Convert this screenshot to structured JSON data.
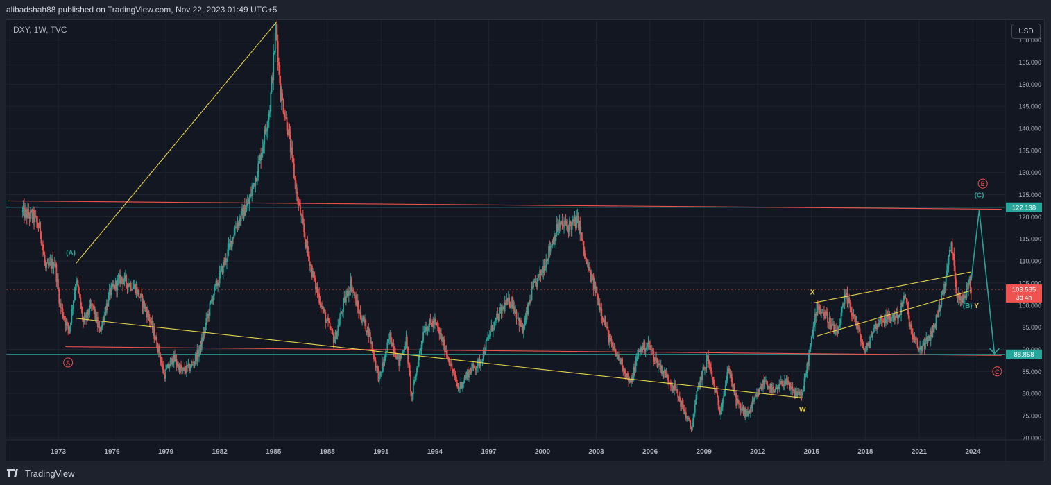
{
  "header": {
    "publisher": "alibadshah88 published on TradingView.com, Nov 22, 2023 01:49 UTC+5"
  },
  "footer": {
    "watermark": "TradingView"
  },
  "currency_button": "USD",
  "colors": {
    "background": "#131722",
    "up": "#26a69a",
    "down": "#ef5350",
    "yellow": "#e8d44d",
    "grid": "#1f2330",
    "text": "#b2b5be"
  },
  "chart_data": {
    "type": "candlestick",
    "symbol_label": "DXY, 1W, TVC",
    "x_range": [
      1970.1,
      2025.8
    ],
    "y_range": [
      69.5,
      164.5
    ],
    "y_ticks": [
      70,
      75,
      80,
      85,
      90,
      95,
      100,
      105,
      110,
      115,
      120,
      125,
      130,
      135,
      140,
      145,
      150,
      155,
      160
    ],
    "y_tick_labels": [
      "70.000",
      "75.000",
      "80.000",
      "85.000",
      "90.000",
      "95.000",
      "100.000",
      "105.000",
      "110.000",
      "115.000",
      "120.000",
      "125.000",
      "130.000",
      "135.000",
      "140.000",
      "145.000",
      "150.000",
      "155.000",
      "160.000"
    ],
    "x_ticks": [
      1973,
      1976,
      1979,
      1982,
      1985,
      1988,
      1991,
      1994,
      1997,
      2000,
      2003,
      2006,
      2009,
      2012,
      2015,
      2018,
      2021,
      2024
    ],
    "x_tick_labels": [
      "1973",
      "1976",
      "1979",
      "1982",
      "1985",
      "1988",
      "1991",
      "1994",
      "1997",
      "2000",
      "2003",
      "2006",
      "2009",
      "2012",
      "2015",
      "2018",
      "2021",
      "2024"
    ],
    "price_path": [
      [
        1971.0,
        121
      ],
      [
        1971.6,
        120
      ],
      [
        1972.0,
        117
      ],
      [
        1972.3,
        108
      ],
      [
        1972.8,
        110
      ],
      [
        1973.1,
        100
      ],
      [
        1973.6,
        94
      ],
      [
        1974.0,
        106
      ],
      [
        1974.4,
        96
      ],
      [
        1974.9,
        100
      ],
      [
        1975.3,
        94
      ],
      [
        1975.9,
        103
      ],
      [
        1976.5,
        106
      ],
      [
        1977.3,
        104
      ],
      [
        1978.0,
        98
      ],
      [
        1978.6,
        90
      ],
      [
        1978.9,
        84
      ],
      [
        1979.4,
        88
      ],
      [
        1979.9,
        85
      ],
      [
        1980.4,
        86
      ],
      [
        1980.9,
        90
      ],
      [
        1981.6,
        102
      ],
      [
        1982.3,
        110
      ],
      [
        1982.9,
        118
      ],
      [
        1983.6,
        123
      ],
      [
        1984.2,
        132
      ],
      [
        1984.8,
        145
      ],
      [
        1985.15,
        163
      ],
      [
        1985.4,
        148
      ],
      [
        1985.8,
        140
      ],
      [
        1986.3,
        125
      ],
      [
        1986.9,
        112
      ],
      [
        1987.3,
        105
      ],
      [
        1987.9,
        97
      ],
      [
        1988.4,
        92
      ],
      [
        1988.9,
        100
      ],
      [
        1989.3,
        105
      ],
      [
        1989.8,
        98
      ],
      [
        1990.3,
        94
      ],
      [
        1990.9,
        83
      ],
      [
        1991.5,
        93
      ],
      [
        1992.0,
        87
      ],
      [
        1992.4,
        92
      ],
      [
        1992.7,
        79
      ],
      [
        1993.4,
        95
      ],
      [
        1994.0,
        96
      ],
      [
        1994.6,
        90
      ],
      [
        1995.3,
        81
      ],
      [
        1995.9,
        85
      ],
      [
        1996.5,
        87
      ],
      [
        1997.2,
        95
      ],
      [
        1997.9,
        100
      ],
      [
        1998.3,
        101
      ],
      [
        1998.9,
        94
      ],
      [
        1999.4,
        103
      ],
      [
        2000.0,
        108
      ],
      [
        2000.5,
        114
      ],
      [
        2000.9,
        118
      ],
      [
        2001.5,
        118
      ],
      [
        2002.0,
        119
      ],
      [
        2002.4,
        110
      ],
      [
        2002.9,
        104
      ],
      [
        2003.4,
        97
      ],
      [
        2003.9,
        90
      ],
      [
        2004.4,
        87
      ],
      [
        2004.9,
        82
      ],
      [
        2005.4,
        90
      ],
      [
        2005.9,
        91
      ],
      [
        2006.4,
        87
      ],
      [
        2006.9,
        84
      ],
      [
        2007.4,
        81
      ],
      [
        2007.9,
        76
      ],
      [
        2008.3,
        72
      ],
      [
        2008.7,
        82
      ],
      [
        2009.2,
        88
      ],
      [
        2009.9,
        76
      ],
      [
        2010.4,
        86
      ],
      [
        2010.8,
        78
      ],
      [
        2011.4,
        75
      ],
      [
        2011.9,
        79
      ],
      [
        2012.4,
        83
      ],
      [
        2012.9,
        80
      ],
      [
        2013.5,
        83
      ],
      [
        2014.0,
        80
      ],
      [
        2014.5,
        80
      ],
      [
        2015.0,
        92
      ],
      [
        2015.3,
        100
      ],
      [
        2015.9,
        97
      ],
      [
        2016.4,
        93
      ],
      [
        2016.9,
        102
      ],
      [
        2017.4,
        97
      ],
      [
        2018.0,
        89
      ],
      [
        2018.5,
        95
      ],
      [
        2018.9,
        97
      ],
      [
        2019.4,
        97
      ],
      [
        2019.9,
        98
      ],
      [
        2020.2,
        102
      ],
      [
        2020.6,
        93
      ],
      [
        2021.0,
        90
      ],
      [
        2021.5,
        92
      ],
      [
        2021.9,
        96
      ],
      [
        2022.4,
        104
      ],
      [
        2022.8,
        114
      ],
      [
        2023.1,
        103
      ],
      [
        2023.5,
        101
      ],
      [
        2023.8,
        106
      ],
      [
        2023.9,
        103.6
      ]
    ],
    "horizontal_lines": [
      {
        "label": "122.138",
        "y": 122.138,
        "color": "#26a69a"
      },
      {
        "label": "88.858",
        "y": 88.858,
        "color": "#26a69a"
      },
      {
        "label": "103.585",
        "sublabel": "3d 4h",
        "y": 103.585,
        "color": "#ef5350"
      }
    ],
    "trend_lines": [
      {
        "color": "#ef5350",
        "points": [
          [
            1970.2,
            123.6
          ],
          [
            2025.6,
            121.7
          ]
        ]
      },
      {
        "color": "#ef5350",
        "points": [
          [
            1973.4,
            90.6
          ],
          [
            2025.6,
            88.6
          ]
        ]
      },
      {
        "color": "#e8d44d",
        "points": [
          [
            1974.0,
            109.5
          ],
          [
            1985.15,
            164.0
          ]
        ]
      },
      {
        "color": "#e8d44d",
        "points": [
          [
            1974.0,
            97.0
          ],
          [
            2014.5,
            79.0
          ]
        ]
      },
      {
        "color": "#e8d44d",
        "points": [
          [
            2015.1,
            100.5
          ],
          [
            2023.9,
            107.5
          ]
        ]
      },
      {
        "color": "#e8d44d",
        "points": [
          [
            2015.3,
            93.0
          ],
          [
            2023.9,
            103.3
          ]
        ]
      }
    ],
    "projection_path": {
      "color": "#26a69a",
      "points": [
        [
          2023.9,
          105.5
        ],
        [
          2024.35,
          121.5
        ],
        [
          2025.2,
          89.0
        ]
      ]
    },
    "wave_labels": [
      {
        "text": "(A)",
        "x": 1973.7,
        "y": 112.0,
        "color": "#26a69a",
        "circled": false
      },
      {
        "text": "A",
        "x": 1973.55,
        "y": 87.0,
        "color": "#ef5350",
        "circled": true
      },
      {
        "text": "B",
        "x": 2024.55,
        "y": 127.5,
        "color": "#ef5350",
        "circled": true
      },
      {
        "text": "(C)",
        "x": 2024.35,
        "y": 125.0,
        "color": "#26a69a",
        "circled": false
      },
      {
        "text": "(B)",
        "x": 2023.7,
        "y": 100.0,
        "color": "#26a69a",
        "circled": false
      },
      {
        "text": "Y",
        "x": 2024.2,
        "y": 100.0,
        "color": "#e8d44d",
        "circled": false
      },
      {
        "text": "X",
        "x": 2015.05,
        "y": 103.0,
        "color": "#e8d44d",
        "circled": false
      },
      {
        "text": "W",
        "x": 2014.5,
        "y": 76.5,
        "color": "#e8d44d",
        "circled": false
      },
      {
        "text": "C",
        "x": 2025.35,
        "y": 85.0,
        "color": "#ef5350",
        "circled": true
      }
    ]
  }
}
